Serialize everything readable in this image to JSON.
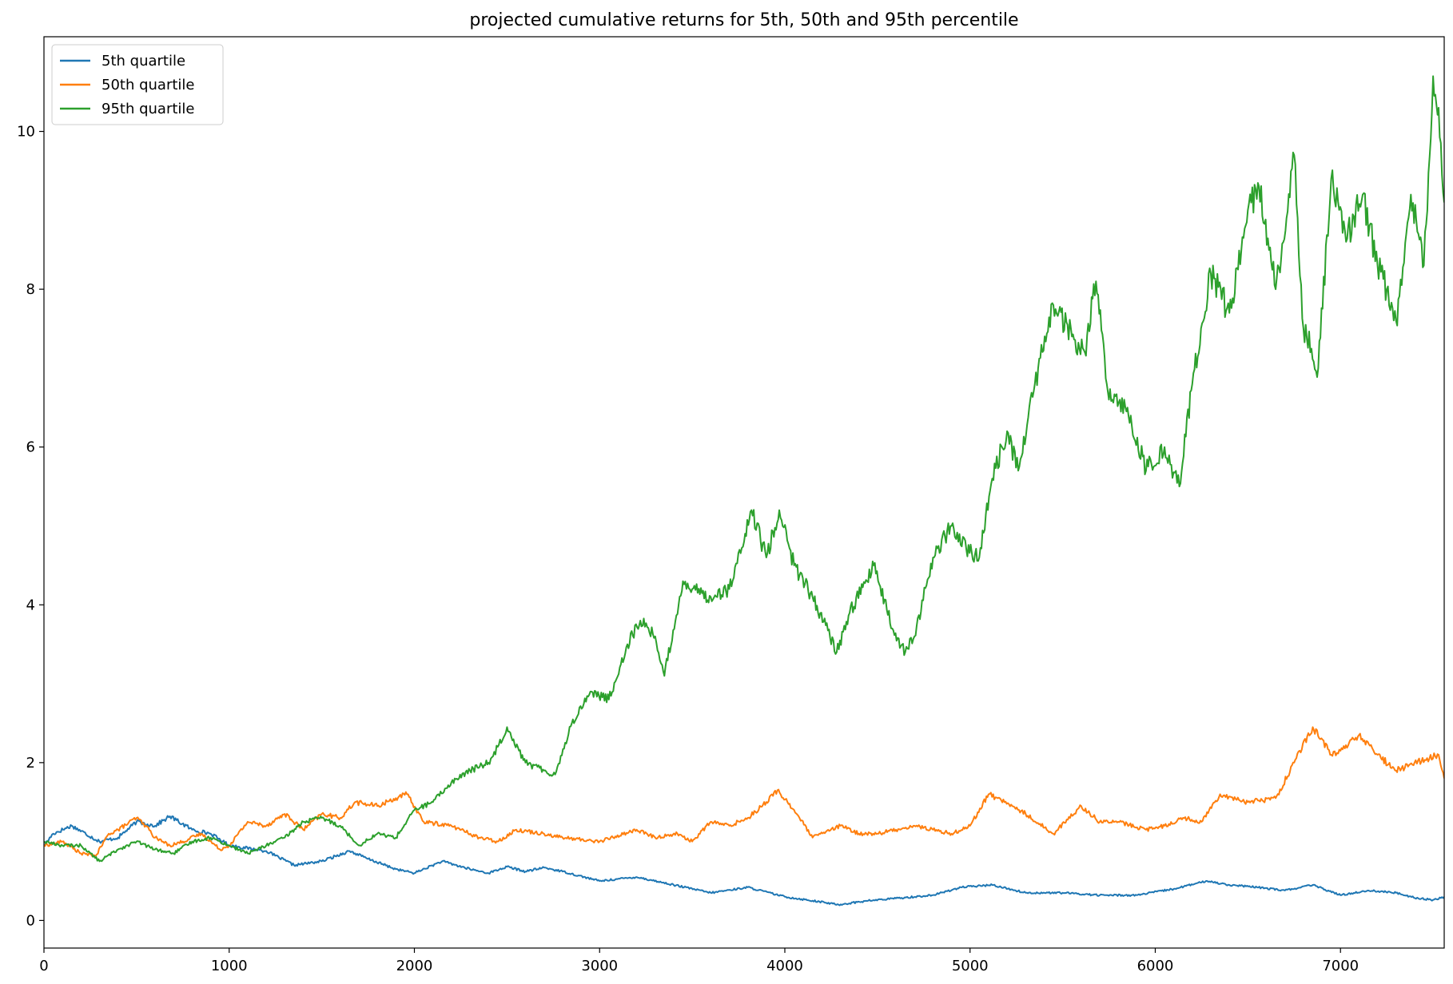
{
  "chart_data": {
    "type": "line",
    "title": "projected cumulative returns for 5th, 50th and 95th percentile",
    "xlabel": "",
    "ylabel": "",
    "xlim": [
      0,
      7560
    ],
    "ylim": [
      -0.35,
      11.2
    ],
    "x_ticks": [
      0,
      1000,
      2000,
      3000,
      4000,
      5000,
      6000,
      7000
    ],
    "y_ticks": [
      0,
      2,
      4,
      6,
      8,
      10
    ],
    "grid": false,
    "legend_position": "top-left",
    "series": [
      {
        "name": "5th quartile",
        "color": "#1f77b4",
        "x": [
          0,
          50,
          150,
          300,
          400,
          500,
          600,
          680,
          800,
          900,
          1000,
          1200,
          1350,
          1500,
          1650,
          1750,
          1900,
          2000,
          2150,
          2300,
          2400,
          2500,
          2600,
          2700,
          2800,
          3000,
          3200,
          3400,
          3600,
          3800,
          4000,
          4150,
          4290,
          4450,
          4600,
          4800,
          4950,
          5120,
          5300,
          5500,
          5700,
          5900,
          6100,
          6280,
          6400,
          6550,
          6700,
          6850,
          7000,
          7150,
          7300,
          7420,
          7500,
          7560
        ],
        "values": [
          0.95,
          1.1,
          1.2,
          1.0,
          1.05,
          1.25,
          1.2,
          1.32,
          1.15,
          1.1,
          0.95,
          0.88,
          0.7,
          0.75,
          0.88,
          0.78,
          0.65,
          0.6,
          0.75,
          0.65,
          0.6,
          0.68,
          0.62,
          0.67,
          0.62,
          0.5,
          0.55,
          0.45,
          0.35,
          0.42,
          0.3,
          0.25,
          0.2,
          0.25,
          0.28,
          0.32,
          0.42,
          0.45,
          0.35,
          0.35,
          0.32,
          0.32,
          0.4,
          0.5,
          0.45,
          0.42,
          0.38,
          0.45,
          0.32,
          0.38,
          0.35,
          0.28,
          0.26,
          0.3
        ]
      },
      {
        "name": "50th quartile",
        "color": "#ff7f0e",
        "x": [
          0,
          100,
          200,
          280,
          350,
          400,
          500,
          550,
          600,
          680,
          750,
          850,
          950,
          1000,
          1100,
          1200,
          1300,
          1400,
          1500,
          1600,
          1680,
          1800,
          1900,
          1960,
          2050,
          2200,
          2350,
          2450,
          2550,
          2700,
          2800,
          3000,
          3200,
          3300,
          3420,
          3500,
          3600,
          3700,
          3800,
          3900,
          3960,
          4050,
          4150,
          4300,
          4400,
          4500,
          4600,
          4700,
          4800,
          4900,
          5000,
          5100,
          5150,
          5300,
          5450,
          5600,
          5700,
          5800,
          5950,
          6050,
          6150,
          6250,
          6350,
          6500,
          6650,
          6750,
          6850,
          6950,
          7000,
          7100,
          7200,
          7300,
          7400,
          7480,
          7530,
          7560
        ],
        "values": [
          0.95,
          1.0,
          0.85,
          0.82,
          1.1,
          1.15,
          1.3,
          1.2,
          1.05,
          0.95,
          1.0,
          1.1,
          0.9,
          0.95,
          1.25,
          1.2,
          1.35,
          1.15,
          1.35,
          1.3,
          1.5,
          1.45,
          1.55,
          1.6,
          1.25,
          1.2,
          1.05,
          1.0,
          1.15,
          1.1,
          1.05,
          1.0,
          1.15,
          1.05,
          1.1,
          1.0,
          1.25,
          1.2,
          1.3,
          1.5,
          1.65,
          1.4,
          1.05,
          1.2,
          1.1,
          1.1,
          1.15,
          1.2,
          1.15,
          1.1,
          1.2,
          1.6,
          1.55,
          1.35,
          1.1,
          1.45,
          1.25,
          1.25,
          1.15,
          1.2,
          1.3,
          1.25,
          1.6,
          1.5,
          1.55,
          2.0,
          2.45,
          2.1,
          2.15,
          2.35,
          2.1,
          1.9,
          2.0,
          2.05,
          2.1,
          1.8
        ]
      },
      {
        "name": "95th quartile",
        "color": "#2ca02c",
        "x": [
          0,
          100,
          200,
          300,
          400,
          500,
          600,
          700,
          800,
          900,
          1000,
          1100,
          1200,
          1300,
          1400,
          1500,
          1600,
          1700,
          1800,
          1900,
          2000,
          2100,
          2200,
          2300,
          2400,
          2450,
          2500,
          2600,
          2700,
          2760,
          2850,
          2950,
          3050,
          3150,
          3220,
          3300,
          3350,
          3450,
          3500,
          3600,
          3700,
          3780,
          3820,
          3900,
          3970,
          4050,
          4150,
          4280,
          4350,
          4480,
          4580,
          4650,
          4700,
          4800,
          4900,
          4980,
          5050,
          5120,
          5200,
          5260,
          5350,
          5450,
          5550,
          5620,
          5680,
          5750,
          5850,
          5950,
          6050,
          6130,
          6200,
          6300,
          6400,
          6500,
          6560,
          6650,
          6750,
          6800,
          6880,
          6950,
          7030,
          7120,
          7200,
          7250,
          7300,
          7380,
          7450,
          7500,
          7530,
          7560
        ],
        "values": [
          1.0,
          0.95,
          0.95,
          0.75,
          0.9,
          1.0,
          0.9,
          0.85,
          1.0,
          1.05,
          0.95,
          0.85,
          0.95,
          1.05,
          1.25,
          1.3,
          1.2,
          0.95,
          1.1,
          1.05,
          1.4,
          1.5,
          1.75,
          1.9,
          2.0,
          2.2,
          2.45,
          2.0,
          1.9,
          1.85,
          2.5,
          2.9,
          2.8,
          3.5,
          3.8,
          3.6,
          3.1,
          4.3,
          4.2,
          4.1,
          4.2,
          4.8,
          5.2,
          4.6,
          5.2,
          4.5,
          4.1,
          3.4,
          3.9,
          4.5,
          3.7,
          3.4,
          3.6,
          4.6,
          5.0,
          4.7,
          4.6,
          5.6,
          6.2,
          5.7,
          6.8,
          7.8,
          7.4,
          7.2,
          8.1,
          6.6,
          6.5,
          5.7,
          6.0,
          5.5,
          6.8,
          8.2,
          7.7,
          9.0,
          9.3,
          8.0,
          9.7,
          7.5,
          7.0,
          9.4,
          8.6,
          9.2,
          8.3,
          8.0,
          7.6,
          9.2,
          8.3,
          10.7,
          10.3,
          9.1
        ]
      }
    ]
  }
}
